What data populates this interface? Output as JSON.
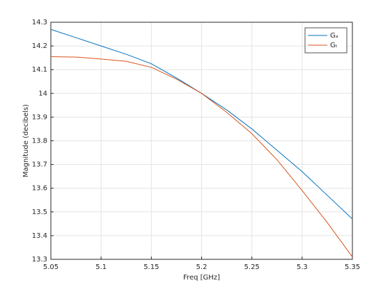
{
  "chart_data": {
    "type": "line",
    "xlabel": "Freq [GHz]",
    "ylabel": "Magnitude (decibels)",
    "x": [
      5.05,
      5.075,
      5.1,
      5.125,
      5.15,
      5.175,
      5.2,
      5.225,
      5.25,
      5.275,
      5.3,
      5.325,
      5.35
    ],
    "series": [
      {
        "name": "Gₐ",
        "color": "#0072bd",
        "values": [
          14.27,
          14.235,
          14.2,
          14.165,
          14.125,
          14.065,
          14.0,
          13.93,
          13.85,
          13.76,
          13.67,
          13.57,
          13.47
        ]
      },
      {
        "name": "Gₜ",
        "color": "#d95319",
        "values": [
          14.155,
          14.153,
          14.145,
          14.135,
          14.11,
          14.06,
          14.0,
          13.92,
          13.83,
          13.72,
          13.59,
          13.455,
          13.31
        ]
      }
    ],
    "xlim": [
      5.05,
      5.35
    ],
    "xticks": [
      5.05,
      5.1,
      5.15,
      5.2,
      5.25,
      5.3,
      5.35
    ],
    "ylim": [
      13.3,
      14.3
    ],
    "yticks": [
      13.3,
      13.4,
      13.5,
      13.6,
      13.7,
      13.8,
      13.9,
      14,
      14.1,
      14.2,
      14.3
    ],
    "grid": true,
    "legend": "northeast"
  }
}
